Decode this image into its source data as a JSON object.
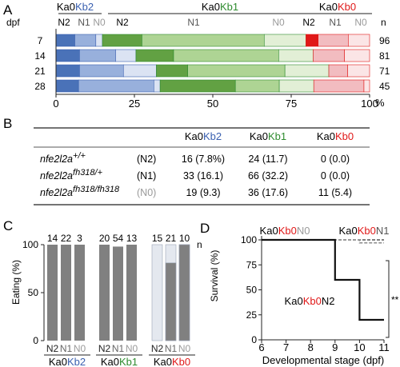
{
  "colors": {
    "ka": "#222222",
    "kb2": "#3a60b0",
    "kb1": "#2e8b2e",
    "kb0": "#e01818",
    "n0": "#9a9a9a",
    "b_n2": "#4a72b8",
    "b_n1": "#98b0dc",
    "b_n0": "#dbe3f3",
    "g_n2": "#62a143",
    "g_n1": "#aed494",
    "g_n0": "#e2efd6",
    "r_n2": "#e01818",
    "r_n1": "#f2bcc0",
    "r_n0": "#fbe5e6",
    "grey_bar": "#808080",
    "light_bar": "#e4e8ef"
  },
  "panel_labels": [
    "A",
    "B",
    "C",
    "D"
  ],
  "panel_a": {
    "ylabel": "dpf",
    "n_label": "n",
    "unit": "%",
    "xlim": [
      0,
      100
    ],
    "ticks": [
      "0",
      "25",
      "50",
      "75",
      "100"
    ],
    "group_headers": [
      {
        "ka": "Ka0",
        "kb": "Kb2",
        "key": "kb2",
        "sub": [
          "N2",
          "N1",
          "N0"
        ]
      },
      {
        "ka": "Ka0",
        "kb": "Kb1",
        "key": "kb1",
        "sub": [
          "N2",
          "N1",
          "N0"
        ]
      },
      {
        "ka": "Ka0",
        "kb": "Kb0",
        "key": "kb0",
        "sub": [
          "N2",
          "N1",
          "N0"
        ]
      }
    ],
    "rows": [
      {
        "dpf": "7",
        "n": "96",
        "values": [
          6.0,
          6.7,
          2.1,
          12.6,
          39.0,
          13.3,
          3.9,
          9.6,
          6.8
        ]
      },
      {
        "dpf": "14",
        "n": "81",
        "values": [
          7.5,
          11.5,
          6.5,
          12.0,
          33.5,
          11.0,
          0,
          10.0,
          8.0
        ]
      },
      {
        "dpf": "21",
        "n": "71",
        "values": [
          7.5,
          14.0,
          10.5,
          10.0,
          31.0,
          14.0,
          0,
          6.0,
          7.0
        ]
      },
      {
        "dpf": "28",
        "n": "45",
        "values": [
          7.2,
          24.0,
          2.0,
          24.0,
          14.0,
          11.0,
          0,
          16.0,
          1.8
        ]
      }
    ]
  },
  "panel_b": {
    "headers": [
      {
        "ka": "Ka0",
        "kb": "Kb2",
        "key": "kb2"
      },
      {
        "ka": "Ka0",
        "kb": "Kb1",
        "key": "kb1"
      },
      {
        "ka": "Ka0",
        "kb": "Kb0",
        "key": "kb0"
      }
    ],
    "rows": [
      {
        "gene": "nfe2l2a",
        "sup": "+/+",
        "geno": "(N2)",
        "cells": [
          "16 (7.8%)",
          "24 (11.7)",
          "0 (0.0)"
        ]
      },
      {
        "gene": "nfe2l2a",
        "sup": "fh318/+",
        "geno": "(N1)",
        "cells": [
          "33 (16.1)",
          "66 (32.2)",
          "0 (0.0)"
        ]
      },
      {
        "gene": "nfe2l2a",
        "sup": "fh318/fh318",
        "geno": "(N0)",
        "cells": [
          "19 (9.3)",
          "36 (17.6)",
          "11 (5.4)"
        ]
      }
    ]
  },
  "panel_c": {
    "ylabel": "Eating (%)",
    "ylim": [
      0,
      100
    ],
    "ticks": [
      "0",
      "50",
      "100"
    ],
    "n_label": "n",
    "bars": [
      {
        "group": "kb2",
        "geno": "N2",
        "n": "14",
        "value": 100
      },
      {
        "group": "kb2",
        "geno": "N1",
        "n": "22",
        "value": 100
      },
      {
        "group": "kb2",
        "geno": "N0",
        "n": "3",
        "value": 100
      },
      {
        "group": "kb1",
        "geno": "N2",
        "n": "20",
        "value": 100
      },
      {
        "group": "kb1",
        "geno": "N1",
        "n": "54",
        "value": 98
      },
      {
        "group": "kb1",
        "geno": "N0",
        "n": "13",
        "value": 100
      },
      {
        "group": "kb0",
        "geno": "N2",
        "n": "15",
        "value": 0
      },
      {
        "group": "kb0",
        "geno": "N1",
        "n": "21",
        "value": 81
      },
      {
        "group": "kb0",
        "geno": "N0",
        "n": "10",
        "value": 100
      }
    ],
    "group_labels": [
      {
        "ka": "Ka0",
        "kb": "Kb2",
        "key": "kb2"
      },
      {
        "ka": "Ka0",
        "kb": "Kb1",
        "key": "kb1"
      },
      {
        "ka": "Ka0",
        "kb": "Kb0",
        "key": "kb0"
      }
    ]
  },
  "panel_d": {
    "ylabel": "Survival (%)",
    "xlabel": "Developmental stage (dpf)",
    "xlim": [
      6,
      11
    ],
    "ylim": [
      0,
      100
    ],
    "xticks": [
      "6",
      "7",
      "8",
      "9",
      "10",
      "11"
    ],
    "yticks": [
      "0",
      "25",
      "50",
      "75",
      "100"
    ],
    "significance": "**",
    "series": [
      {
        "ka": "Ka0",
        "kb": "Kb0",
        "n": "N0",
        "style": "dashed-black",
        "points": [
          [
            6,
            100
          ],
          [
            11,
            100
          ]
        ]
      },
      {
        "ka": "Ka0",
        "kb": "Kb0",
        "n": "N1",
        "style": "dashed-grey",
        "points": [
          [
            6,
            100
          ],
          [
            10,
            100
          ],
          [
            10,
            97
          ],
          [
            11,
            97
          ]
        ]
      },
      {
        "ka": "Ka0",
        "kb": "Kb0",
        "n": "N2",
        "style": "solid",
        "points": [
          [
            6,
            100
          ],
          [
            9,
            100
          ],
          [
            9,
            60
          ],
          [
            10,
            60
          ],
          [
            10,
            20
          ],
          [
            11,
            20
          ]
        ]
      }
    ]
  }
}
